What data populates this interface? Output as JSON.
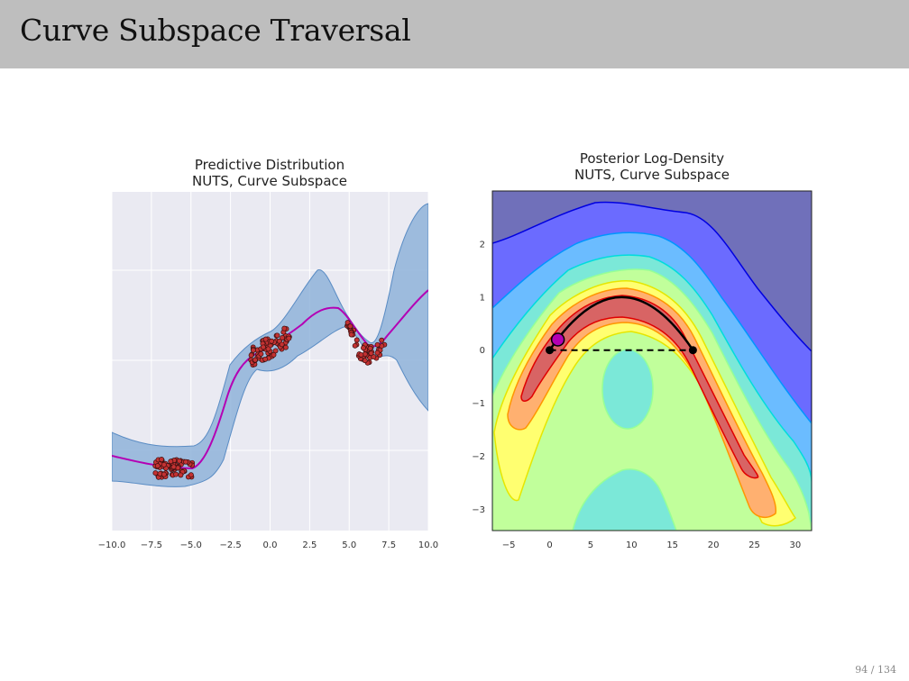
{
  "slide": {
    "title": "Curve Subspace Traversal",
    "page_number": "94 / 134"
  },
  "chart_data": [
    {
      "type": "line",
      "title": "Predictive Distribution",
      "subtitle": "NUTS, Curve Subspace",
      "xlim": [
        -10,
        10
      ],
      "x_ticks": [
        "−10.0",
        "−7.5",
        "−5.0",
        "−2.5",
        "0.0",
        "2.5",
        "5.0",
        "7.5",
        "10.0"
      ],
      "x_tick_values": [
        -10,
        -7.5,
        -5,
        -2.5,
        0,
        2.5,
        5,
        7.5,
        10
      ],
      "grid": true,
      "series": [
        {
          "role": "mean",
          "color": "#b400b4"
        },
        {
          "role": "band",
          "color": "#8fb3d9"
        },
        {
          "role": "observations",
          "color": "#c43232"
        }
      ]
    },
    {
      "type": "contour",
      "title": "Posterior Log-Density",
      "subtitle": "NUTS, Curve Subspace",
      "xlim": [
        -7,
        32
      ],
      "ylim": [
        -3.4,
        3
      ],
      "x_ticks": [
        "−5",
        "0",
        "5",
        "10",
        "15",
        "20",
        "25",
        "30"
      ],
      "x_tick_values": [
        -5,
        0,
        5,
        10,
        15,
        20,
        25,
        30
      ],
      "y_ticks": [
        "2",
        "1",
        "0",
        "−1",
        "−2",
        "−3"
      ],
      "y_tick_values": [
        2,
        1,
        0,
        -1,
        -2,
        -3
      ],
      "levels_colors": [
        "#7070ba",
        "#6b6bff",
        "#6bbcff",
        "#7be8d8",
        "#c1ff9b",
        "#ffff70",
        "#ffb070",
        "#d86464"
      ],
      "curve_endpoints": [
        [
          0,
          0
        ],
        [
          17.5,
          0
        ]
      ],
      "curve_peak": [
        8.8,
        1.0
      ],
      "marker_point": [
        1,
        0.2
      ]
    }
  ]
}
